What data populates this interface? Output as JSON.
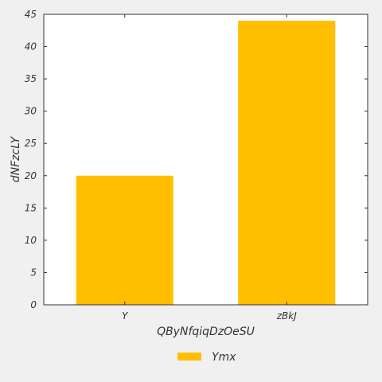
{
  "chart_data": {
    "type": "bar",
    "categories": [
      "Y",
      "zBkJ"
    ],
    "series": [
      {
        "name": "Ymx",
        "values": [
          20,
          44
        ],
        "color": "#ffbf00"
      }
    ],
    "title": "",
    "xlabel": "QByNfqiqDzOeSU",
    "ylabel": "dNFzcLY",
    "ylim": [
      0,
      45
    ],
    "yticks": [
      0,
      5,
      10,
      15,
      20,
      25,
      30,
      35,
      40,
      45
    ],
    "grid": false,
    "legend_position": "bottom-center"
  }
}
